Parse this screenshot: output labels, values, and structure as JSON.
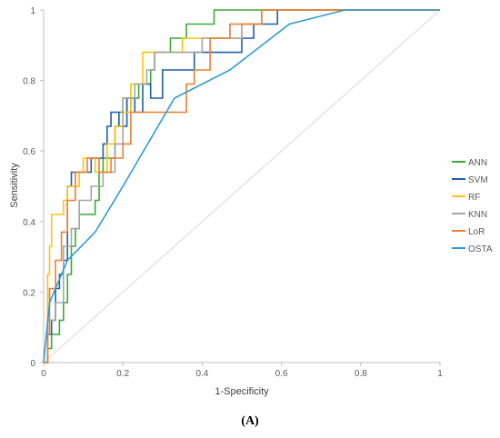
{
  "chart_data": {
    "type": "line",
    "title": "",
    "xlabel": "1-Specificity",
    "ylabel": "Sensitivity",
    "xlim": [
      0,
      1
    ],
    "ylim": [
      0,
      1
    ],
    "x_ticks": [
      "0",
      "0.2",
      "0.4",
      "0.6",
      "0.8",
      "1"
    ],
    "y_ticks": [
      "0",
      "0.2",
      "0.4",
      "0.6",
      "0.8",
      "1"
    ],
    "grid": false,
    "legend_position": "right",
    "reference_line": {
      "x": [
        0,
        1
      ],
      "y": [
        0,
        1
      ],
      "color": "#d9d9d9"
    },
    "series": [
      {
        "name": "ANN",
        "color": "#3aaa35",
        "x": [
          0,
          0.01,
          0.01,
          0.02,
          0.02,
          0.04,
          0.04,
          0.05,
          0.05,
          0.06,
          0.06,
          0.07,
          0.07,
          0.08,
          0.08,
          0.09,
          0.09,
          0.13,
          0.13,
          0.14,
          0.14,
          0.15,
          0.15,
          0.18,
          0.18,
          0.19,
          0.19,
          0.2,
          0.2,
          0.21,
          0.21,
          0.22,
          0.22,
          0.24,
          0.24,
          0.27,
          0.27,
          0.28,
          0.28,
          0.32,
          0.32,
          0.36,
          0.36,
          0.43,
          0.43,
          0.52,
          0.52,
          0.62,
          0.62,
          1
        ],
        "y": [
          0,
          0,
          0.04,
          0.04,
          0.08,
          0.08,
          0.12,
          0.12,
          0.17,
          0.17,
          0.25,
          0.25,
          0.33,
          0.33,
          0.38,
          0.38,
          0.42,
          0.42,
          0.46,
          0.46,
          0.54,
          0.54,
          0.58,
          0.58,
          0.67,
          0.67,
          0.71,
          0.71,
          0.75,
          0.75,
          0.71,
          0.71,
          0.75,
          0.75,
          0.79,
          0.79,
          0.83,
          0.83,
          0.88,
          0.88,
          0.92,
          0.92,
          0.96,
          0.96,
          1,
          1,
          1,
          1,
          1,
          1
        ]
      },
      {
        "name": "SVM",
        "color": "#1f5fa8",
        "x": [
          0,
          0.01,
          0.01,
          0.02,
          0.02,
          0.03,
          0.03,
          0.04,
          0.04,
          0.05,
          0.05,
          0.06,
          0.06,
          0.07,
          0.07,
          0.12,
          0.12,
          0.15,
          0.15,
          0.16,
          0.16,
          0.17,
          0.17,
          0.19,
          0.19,
          0.21,
          0.21,
          0.23,
          0.23,
          0.25,
          0.25,
          0.27,
          0.27,
          0.3,
          0.3,
          0.32,
          0.32,
          0.38,
          0.38,
          0.42,
          0.42,
          0.5,
          0.5,
          0.53,
          0.53,
          0.59,
          0.59,
          1
        ],
        "y": [
          0,
          0,
          0.08,
          0.08,
          0.12,
          0.12,
          0.21,
          0.21,
          0.25,
          0.25,
          0.29,
          0.29,
          0.5,
          0.5,
          0.54,
          0.54,
          0.58,
          0.58,
          0.62,
          0.62,
          0.67,
          0.67,
          0.71,
          0.71,
          0.67,
          0.67,
          0.75,
          0.75,
          0.71,
          0.71,
          0.79,
          0.79,
          0.75,
          0.75,
          0.83,
          0.83,
          0.83,
          0.83,
          0.88,
          0.88,
          0.88,
          0.88,
          0.92,
          0.92,
          0.96,
          0.96,
          1,
          1
        ]
      },
      {
        "name": "RF",
        "color": "#ffc20e",
        "x": [
          0,
          0.01,
          0.01,
          0.015,
          0.015,
          0.02,
          0.02,
          0.05,
          0.05,
          0.06,
          0.06,
          0.09,
          0.09,
          0.1,
          0.1,
          0.13,
          0.13,
          0.16,
          0.16,
          0.18,
          0.18,
          0.2,
          0.2,
          0.22,
          0.22,
          0.25,
          0.25,
          0.3,
          0.3,
          0.35,
          0.35,
          0.4,
          0.4,
          0.5,
          0.5,
          0.55,
          0.55,
          0.6,
          0.6,
          1
        ],
        "y": [
          0,
          0,
          0.25,
          0.25,
          0.33,
          0.33,
          0.42,
          0.42,
          0.46,
          0.46,
          0.5,
          0.5,
          0.54,
          0.54,
          0.58,
          0.58,
          0.54,
          0.54,
          0.62,
          0.62,
          0.67,
          0.67,
          0.71,
          0.71,
          0.79,
          0.79,
          0.88,
          0.88,
          0.88,
          0.88,
          0.92,
          0.92,
          0.92,
          0.92,
          0.96,
          0.96,
          1,
          1,
          1,
          1
        ]
      },
      {
        "name": "KNN",
        "color": "#a5a5a5",
        "x": [
          0,
          0.01,
          0.01,
          0.03,
          0.03,
          0.05,
          0.05,
          0.07,
          0.07,
          0.09,
          0.09,
          0.12,
          0.12,
          0.15,
          0.15,
          0.18,
          0.18,
          0.2,
          0.2,
          0.23,
          0.23,
          0.26,
          0.26,
          0.28,
          0.28,
          0.32,
          0.32,
          0.4,
          0.4,
          0.5,
          0.5,
          0.55,
          0.55,
          0.62,
          0.62,
          1
        ],
        "y": [
          0,
          0,
          0.12,
          0.12,
          0.17,
          0.17,
          0.33,
          0.33,
          0.38,
          0.38,
          0.46,
          0.46,
          0.5,
          0.5,
          0.54,
          0.54,
          0.62,
          0.62,
          0.75,
          0.75,
          0.79,
          0.79,
          0.83,
          0.83,
          0.88,
          0.88,
          0.88,
          0.88,
          0.92,
          0.92,
          0.96,
          0.96,
          1,
          1,
          1,
          1
        ]
      },
      {
        "name": "LoR",
        "color": "#ed7d31",
        "x": [
          0,
          0.01,
          0.01,
          0.015,
          0.015,
          0.03,
          0.03,
          0.045,
          0.045,
          0.06,
          0.06,
          0.08,
          0.08,
          0.11,
          0.11,
          0.14,
          0.14,
          0.17,
          0.17,
          0.2,
          0.2,
          0.22,
          0.22,
          0.26,
          0.26,
          0.28,
          0.28,
          0.36,
          0.36,
          0.38,
          0.38,
          0.42,
          0.42,
          0.47,
          0.47,
          0.55,
          0.55,
          0.64,
          0.64,
          1
        ],
        "y": [
          0,
          0,
          0.08,
          0.08,
          0.21,
          0.21,
          0.29,
          0.29,
          0.37,
          0.37,
          0.46,
          0.46,
          0.54,
          0.54,
          0.58,
          0.58,
          0.54,
          0.54,
          0.58,
          0.58,
          0.62,
          0.62,
          0.71,
          0.71,
          0.71,
          0.71,
          0.71,
          0.71,
          0.79,
          0.79,
          0.83,
          0.83,
          0.92,
          0.92,
          0.96,
          0.96,
          1,
          1,
          1,
          1
        ]
      },
      {
        "name": "OSTA",
        "color": "#2e9bd6",
        "x": [
          0,
          0.015,
          0.06,
          0.13,
          0.2,
          0.33,
          0.47,
          0.62,
          0.76,
          1
        ],
        "y": [
          0,
          0.17,
          0.29,
          0.37,
          0.5,
          0.75,
          0.83,
          0.96,
          1,
          1
        ]
      }
    ]
  },
  "panel_label": "(A)"
}
